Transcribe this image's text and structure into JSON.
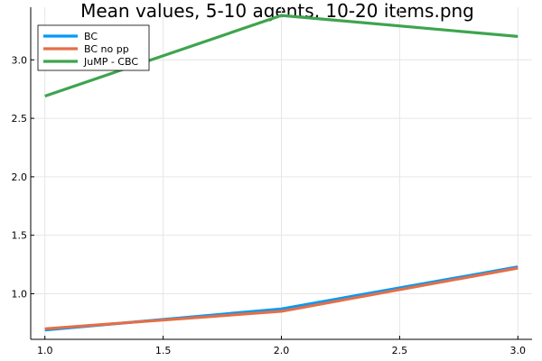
{
  "chart_data": {
    "type": "line",
    "title": "Mean values, 5-10 agents, 10-20 items.png",
    "xlabel": "",
    "ylabel": "",
    "x": [
      1.0,
      2.0,
      3.0
    ],
    "xlim": [
      0.94,
      3.06
    ],
    "ylim": [
      0.61,
      3.45
    ],
    "xticks": [
      1.0,
      1.5,
      2.0,
      2.5,
      3.0
    ],
    "xtick_labels": [
      "1.0",
      "1.5",
      "2.0",
      "2.5",
      "3.0"
    ],
    "yticks": [
      1.0,
      1.5,
      2.0,
      2.5,
      3.0
    ],
    "ytick_labels": [
      "1.0",
      "1.5",
      "2.0",
      "2.5",
      "3.0"
    ],
    "grid": true,
    "legend_position": "top-left",
    "series": [
      {
        "name": "BC",
        "color": "#009AFA",
        "values": [
          0.69,
          0.87,
          1.23
        ]
      },
      {
        "name": "BC no pp",
        "color": "#E36F47",
        "values": [
          0.7,
          0.85,
          1.22
        ]
      },
      {
        "name": "JuMP - CBC",
        "color": "#3EA44E",
        "values": [
          2.69,
          3.38,
          3.2
        ]
      }
    ]
  }
}
